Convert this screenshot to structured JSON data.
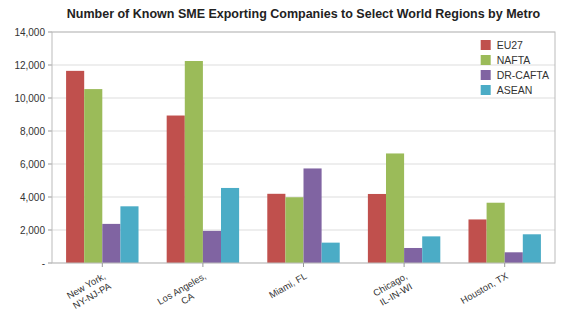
{
  "chart_data": {
    "type": "bar",
    "title": "Number of Known SME Exporting Companies to Select World Regions by Metro",
    "categories": [
      "New York,\nNY-NJ-PA",
      "Los Angeles,\nCA",
      "Miami, FL",
      "Chicago,\nIL-IN-WI",
      "Houston, TX"
    ],
    "series": [
      {
        "name": "EU27",
        "color": "#C0504D",
        "values": [
          11645,
          8938,
          4194,
          4184,
          2640
        ]
      },
      {
        "name": "NAFTA",
        "color": "#9BBB59",
        "values": [
          10540,
          12242,
          3985,
          6639,
          3653
        ]
      },
      {
        "name": "DR-CAFTA",
        "color": "#8064A2",
        "values": [
          2370,
          1947,
          5730,
          910,
          649
        ]
      },
      {
        "name": "ASEAN",
        "color": "#4BACC6",
        "values": [
          3436,
          4548,
          1234,
          1614,
          1740
        ]
      }
    ],
    "ylim": [
      0,
      14000
    ],
    "yticks": [
      {
        "value": 0,
        "label": "-"
      },
      {
        "value": 2000,
        "label": "2,000"
      },
      {
        "value": 4000,
        "label": "4,000"
      },
      {
        "value": 6000,
        "label": "6,000"
      },
      {
        "value": 8000,
        "label": "8,000"
      },
      {
        "value": 10000,
        "label": "10,000"
      },
      {
        "value": 12000,
        "label": "12,000"
      },
      {
        "value": 14000,
        "label": "14,000"
      }
    ],
    "grid": true,
    "legend": "upper right"
  }
}
